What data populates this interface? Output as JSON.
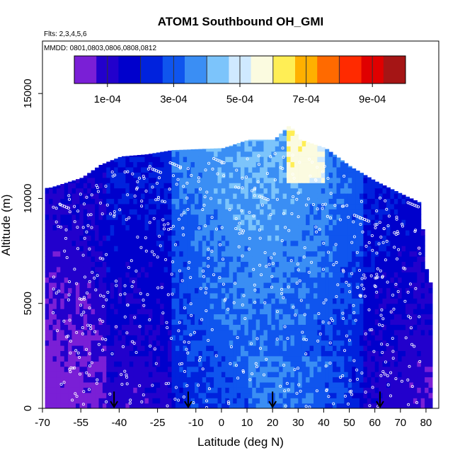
{
  "chart_data": {
    "type": "heatmap",
    "title": "ATOM1 Southbound OH_GMI",
    "flights_label": "Flts: 2,3,4,5,6",
    "dates_label": "MMDD: 0801,0803,0806,0808,0812",
    "xlabel": "Latitude (deg N)",
    "ylabel": "Altitude (m)",
    "xlim": [
      -70,
      85
    ],
    "ylim": [
      0,
      17500
    ],
    "x_ticks": [
      -70,
      -55,
      -40,
      -25,
      -10,
      0,
      10,
      20,
      30,
      40,
      50,
      60,
      70,
      80
    ],
    "x_tick_labels": [
      "-70",
      "-55",
      "-40",
      "-25",
      "-10",
      "0",
      "10",
      "20",
      "30",
      "40",
      "50",
      "60",
      "70",
      "80"
    ],
    "y_ticks": [
      0,
      5000,
      10000,
      15000
    ],
    "y_tick_labels": [
      "0",
      "5000",
      "10000",
      "15000"
    ],
    "colorbar": {
      "range": [
        0,
        0.001
      ],
      "ticks": [
        0.0001,
        0.0003,
        0.0005,
        0.0007,
        0.0009
      ],
      "tick_labels": [
        "1e-04",
        "3e-04",
        "5e-04",
        "7e-04",
        "9e-04"
      ],
      "colors": [
        "#7a1fd6",
        "#2200cc",
        "#0000cc",
        "#0022dd",
        "#0f55ee",
        "#3a8ef4",
        "#7cc4fb",
        "#cfe9ff",
        "#fbfbe0",
        "#ffee55",
        "#ffb000",
        "#ff6a00",
        "#ff2a00",
        "#e00000",
        "#a51515"
      ]
    },
    "column_tops": [
      {
        "lat": -68,
        "top": 10500
      },
      {
        "lat": -60,
        "top": 10800
      },
      {
        "lat": -55,
        "top": 11000
      },
      {
        "lat": -48,
        "top": 11600
      },
      {
        "lat": -40,
        "top": 12000
      },
      {
        "lat": -30,
        "top": 12100
      },
      {
        "lat": -20,
        "top": 12300
      },
      {
        "lat": -10,
        "top": 12350
      },
      {
        "lat": 0,
        "top": 12400
      },
      {
        "lat": 10,
        "top": 12800
      },
      {
        "lat": 20,
        "top": 12800
      },
      {
        "lat": 26,
        "top": 13500
      },
      {
        "lat": 30,
        "top": 12800
      },
      {
        "lat": 40,
        "top": 12400
      },
      {
        "lat": 50,
        "top": 11500
      },
      {
        "lat": 60,
        "top": 10800
      },
      {
        "lat": 70,
        "top": 10200
      },
      {
        "lat": 77,
        "top": 9800
      },
      {
        "lat": 80,
        "top": 6000
      }
    ],
    "arrow_latitudes": [
      -42,
      -13,
      20,
      62
    ]
  }
}
